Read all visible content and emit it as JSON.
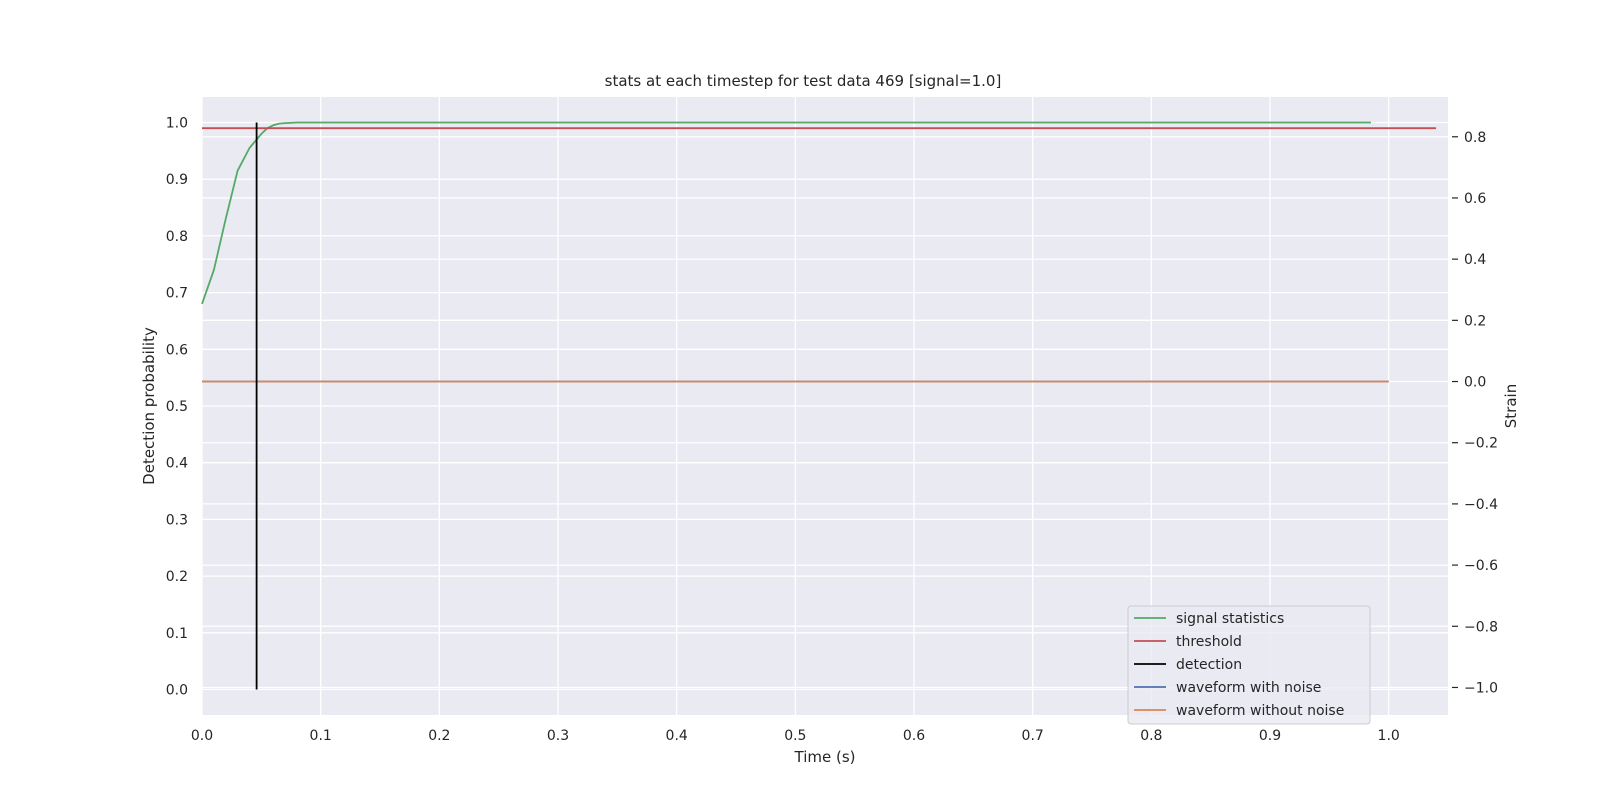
{
  "chart_data": {
    "type": "line",
    "title": "stats at each timestep for test data 469 [signal=1.0]",
    "xlabel": "Time (s)",
    "ylabel": "Detection probability",
    "y2label": "Strain",
    "xlim": [
      0.0,
      1.05
    ],
    "ylim": [
      -0.045,
      1.045
    ],
    "y2lim": [
      -1.09,
      0.93
    ],
    "xticks": [
      "0.0",
      "0.1",
      "0.2",
      "0.3",
      "0.4",
      "0.5",
      "0.6",
      "0.7",
      "0.8",
      "0.9",
      "1.0"
    ],
    "yticks": [
      "0.0",
      "0.1",
      "0.2",
      "0.3",
      "0.4",
      "0.5",
      "0.6",
      "0.7",
      "0.8",
      "0.9",
      "1.0"
    ],
    "y2ticks": [
      "−1.0",
      "−0.8",
      "−0.6",
      "−0.4",
      "−0.2",
      "0.0",
      "0.2",
      "0.4",
      "0.6",
      "0.8"
    ],
    "grid": true,
    "legend_position": "lower-right",
    "colors": {
      "background": "#eaeaf2",
      "grid": "#ffffff",
      "signal_statistics": "#55a868",
      "threshold": "#c44e52",
      "detection": "#000000",
      "waveform_with_noise": "#4c72b0",
      "waveform_without_noise": "#dd8452"
    },
    "series": [
      {
        "name": "signal statistics",
        "axis": "left",
        "x": [
          0.0,
          0.01,
          0.02,
          0.03,
          0.04,
          0.05,
          0.055,
          0.06,
          0.065,
          0.07,
          0.08,
          0.09,
          0.1,
          0.3,
          0.6,
          0.985
        ],
        "y": [
          0.68,
          0.74,
          0.83,
          0.915,
          0.955,
          0.98,
          0.99,
          0.995,
          0.998,
          0.999,
          1.0,
          1.0,
          1.0,
          1.0,
          1.0,
          1.0
        ]
      },
      {
        "name": "threshold",
        "axis": "left",
        "x": [
          0.0,
          1.04
        ],
        "y": [
          0.99,
          0.99
        ]
      },
      {
        "name": "detection",
        "axis": "left",
        "x": [
          0.046,
          0.046
        ],
        "y": [
          0.0,
          1.0
        ]
      },
      {
        "name": "waveform with noise",
        "axis": "right",
        "x": [
          0.0,
          1.0
        ],
        "y": [
          0.0,
          0.0
        ]
      },
      {
        "name": "waveform without noise",
        "axis": "right",
        "x": [
          0.0,
          1.0
        ],
        "y": [
          0.0,
          0.0
        ]
      }
    ],
    "legend": [
      "signal statistics",
      "threshold",
      "detection",
      "waveform with noise",
      "waveform without noise"
    ]
  }
}
